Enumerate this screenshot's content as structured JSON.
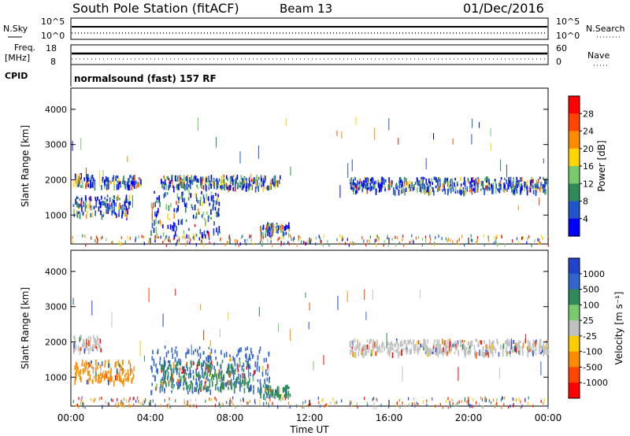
{
  "header": {
    "title": "South Pole Station (fitACF)",
    "beam": "Beam 13",
    "date": "01/Dec/2016"
  },
  "summary": {
    "nsky_label": "N.Sky",
    "nsky_ticks": [
      "10^5",
      "10^0"
    ],
    "nsearch_label": "N.Search",
    "freq_label": "Freq.",
    "freq_unit": "[MHz]",
    "freq_ticks": [
      "18",
      "8"
    ],
    "nave_ticks": [
      "60",
      "0"
    ],
    "nave_label": "Nave",
    "cpid_label": "CPID",
    "cpid_text": "normalsound (fast) 157 RF"
  },
  "chart_data": [
    {
      "type": "heatmap",
      "name": "power",
      "ylabel": "Slant Range [km]",
      "ylim": [
        180,
        4600
      ],
      "yticks": [
        "1000",
        "2000",
        "3000",
        "4000"
      ],
      "colorbar_label": "Power [dB]",
      "colorbar_ticks": [
        "4",
        "8",
        "12",
        "16",
        "20",
        "24",
        "28"
      ],
      "colors": [
        "#0000ff",
        "#2255cc",
        "#2e8b57",
        "#7bc96f",
        "#ffd700",
        "#ff8c00",
        "#ff4500",
        "#ff0000"
      ],
      "echo_regions": [
        {
          "t": [
            0.1,
            1.2
          ],
          "r": [
            1850,
            2200
          ]
        },
        {
          "t": [
            0.1,
            3.0
          ],
          "r": [
            1000,
            1600
          ]
        },
        {
          "t": [
            1.5,
            3.5
          ],
          "r": [
            1850,
            2150
          ]
        },
        {
          "t": [
            4.0,
            7.5
          ],
          "r": [
            400,
            1700
          ]
        },
        {
          "t": [
            4.5,
            10.5
          ],
          "r": [
            1800,
            2150
          ]
        },
        {
          "t": [
            9.5,
            11.0
          ],
          "r": [
            500,
            800
          ]
        },
        {
          "t": [
            14.0,
            24.0
          ],
          "r": [
            1700,
            2100
          ]
        }
      ]
    },
    {
      "type": "heatmap",
      "name": "velocity",
      "ylabel": "Slant Range [km]",
      "xlabel": "Time UT",
      "ylim": [
        180,
        4600
      ],
      "yticks": [
        "1000",
        "2000",
        "3000",
        "4000"
      ],
      "xticks": [
        "00:00",
        "04:00",
        "08:00",
        "12:00",
        "16:00",
        "20:00",
        "00:00"
      ],
      "xlim": [
        0,
        24
      ],
      "colorbar_label": "Velocity [m s⁻¹]",
      "colorbar_ticks": [
        "1000",
        "500",
        "100",
        "25",
        "-25",
        "-100",
        "-500",
        "-1000"
      ],
      "colors": [
        "#2244cc",
        "#3366cc",
        "#2e8b57",
        "#7bc96f",
        "#c0c0c0",
        "#ffcc00",
        "#ff8c00",
        "#ff4500",
        "#ff0000"
      ],
      "echo_regions": [
        {
          "t": [
            0.1,
            1.5
          ],
          "r": [
            1800,
            2200
          ],
          "c": 4
        },
        {
          "t": [
            0.1,
            3.2
          ],
          "r": [
            900,
            1500
          ],
          "c": 6
        },
        {
          "t": [
            4.0,
            10.0
          ],
          "r": [
            600,
            1900
          ],
          "c": 1
        },
        {
          "t": [
            4.5,
            9.0
          ],
          "r": [
            700,
            1500
          ],
          "c": 2
        },
        {
          "t": [
            9.5,
            11.0
          ],
          "r": [
            500,
            800
          ],
          "c": 2
        },
        {
          "t": [
            14.0,
            24.0
          ],
          "r": [
            1700,
            2100
          ],
          "c": 4
        }
      ]
    }
  ]
}
